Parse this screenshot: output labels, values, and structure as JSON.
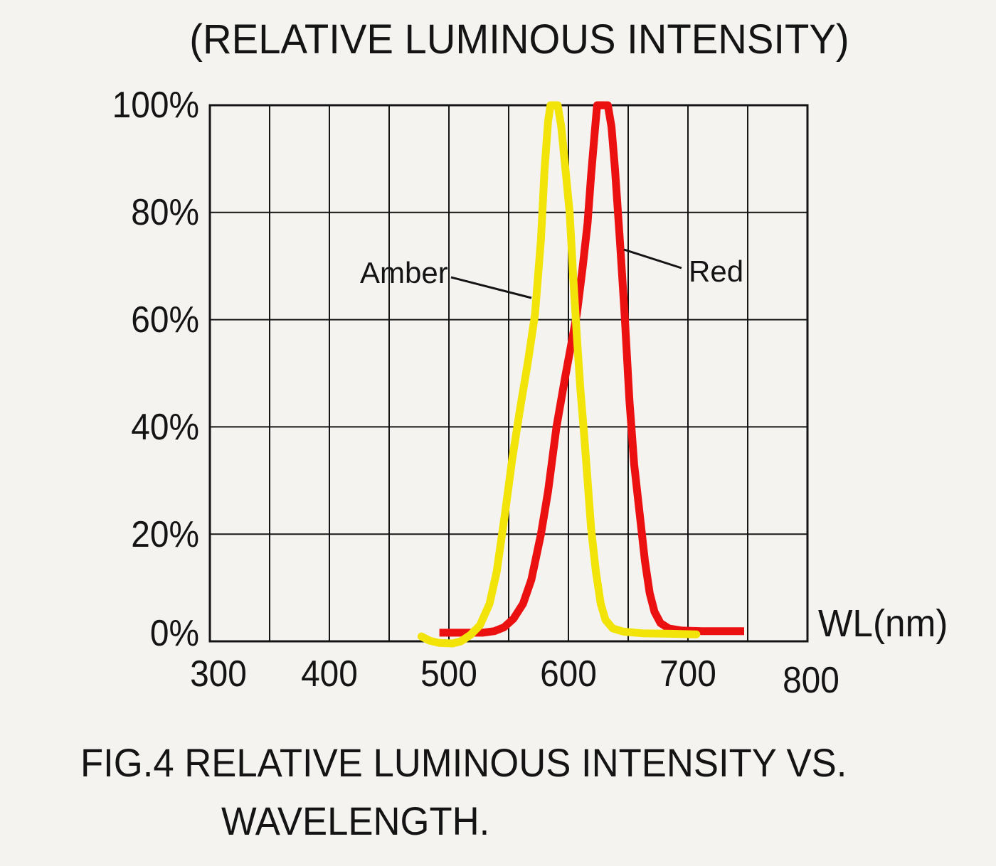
{
  "page": {
    "background": "#f4f3f0",
    "ink_color": "#141414",
    "caption_line1": "FIG.4 RELATIVE LUMINOUS INTENSITY VS.",
    "caption_line2": "WAVELENGTH."
  },
  "chart_data": {
    "type": "line",
    "title": "(RELATIVE LUMINOUS INTENSITY)",
    "xlabel": "WL(nm)",
    "ylabel": "",
    "x_range": [
      300,
      800
    ],
    "y_range": [
      0,
      100
    ],
    "x_gridline_step_nm": 50,
    "y_gridline_step_pct": 20,
    "grid": "on",
    "legend_position": "inline-annotations",
    "x_ticks": [
      {
        "value": 300,
        "label": "300"
      },
      {
        "value": 400,
        "label": "400"
      },
      {
        "value": 500,
        "label": "500"
      },
      {
        "value": 600,
        "label": "600"
      },
      {
        "value": 700,
        "label": "700"
      },
      {
        "value": 800,
        "label": "800"
      }
    ],
    "y_ticks": [
      {
        "value": 100,
        "label": "100%"
      },
      {
        "value": 80,
        "label": "80%"
      },
      {
        "value": 60,
        "label": "60%"
      },
      {
        "value": 40,
        "label": "40%"
      },
      {
        "value": 20,
        "label": "20%"
      },
      {
        "value": 0,
        "label": "0%"
      }
    ],
    "series": [
      {
        "name": "Red",
        "color": "#ec1111",
        "peak_nm": 628,
        "linecap": "butt",
        "points": [
          [
            492,
            1.6
          ],
          [
            510,
            1.6
          ],
          [
            528,
            1.6
          ],
          [
            538,
            1.9
          ],
          [
            546,
            2.6
          ],
          [
            554,
            4.2
          ],
          [
            562,
            7
          ],
          [
            569,
            11.5
          ],
          [
            577,
            20
          ],
          [
            583,
            28
          ],
          [
            590,
            40
          ],
          [
            597,
            49
          ],
          [
            602,
            55
          ],
          [
            607,
            61
          ],
          [
            612,
            70
          ],
          [
            616,
            78
          ],
          [
            619,
            87
          ],
          [
            622,
            95
          ],
          [
            624,
            100
          ],
          [
            633,
            100
          ],
          [
            636,
            96
          ],
          [
            639,
            88
          ],
          [
            643,
            75
          ],
          [
            647,
            61
          ],
          [
            651,
            45
          ],
          [
            655,
            33
          ],
          [
            660,
            23
          ],
          [
            664,
            15
          ],
          [
            668,
            9
          ],
          [
            672,
            5.5
          ],
          [
            677,
            3.4
          ],
          [
            684,
            2.4
          ],
          [
            695,
            2
          ],
          [
            712,
            1.9
          ],
          [
            730,
            1.9
          ],
          [
            747,
            1.9
          ]
        ]
      },
      {
        "name": "Amber",
        "color": "#f2e409",
        "peak_nm": 588,
        "linecap": "round",
        "points": [
          [
            477,
            0.9
          ],
          [
            484,
            0.1
          ],
          [
            492,
            -0.3
          ],
          [
            503,
            -0.4
          ],
          [
            510,
            0
          ],
          [
            518,
            1.2
          ],
          [
            526,
            3
          ],
          [
            534,
            7
          ],
          [
            540,
            13
          ],
          [
            547,
            24
          ],
          [
            553,
            34
          ],
          [
            560,
            44
          ],
          [
            566,
            52
          ],
          [
            572,
            61
          ],
          [
            577,
            75
          ],
          [
            580,
            88
          ],
          [
            583,
            97
          ],
          [
            585,
            100
          ],
          [
            591,
            100
          ],
          [
            594,
            96
          ],
          [
            598,
            87
          ],
          [
            601,
            80
          ],
          [
            604,
            68
          ],
          [
            607,
            57
          ],
          [
            610,
            47
          ],
          [
            613,
            39
          ],
          [
            616,
            30
          ],
          [
            619,
            21
          ],
          [
            623,
            13
          ],
          [
            627,
            7
          ],
          [
            631,
            4
          ],
          [
            637,
            2.4
          ],
          [
            646,
            1.8
          ],
          [
            662,
            1.5
          ],
          [
            685,
            1.4
          ],
          [
            707,
            1.3
          ]
        ]
      }
    ],
    "annotations": [
      {
        "label": "Amber",
        "points_to_series": "Amber"
      },
      {
        "label": "Red",
        "points_to_series": "Red"
      }
    ]
  }
}
